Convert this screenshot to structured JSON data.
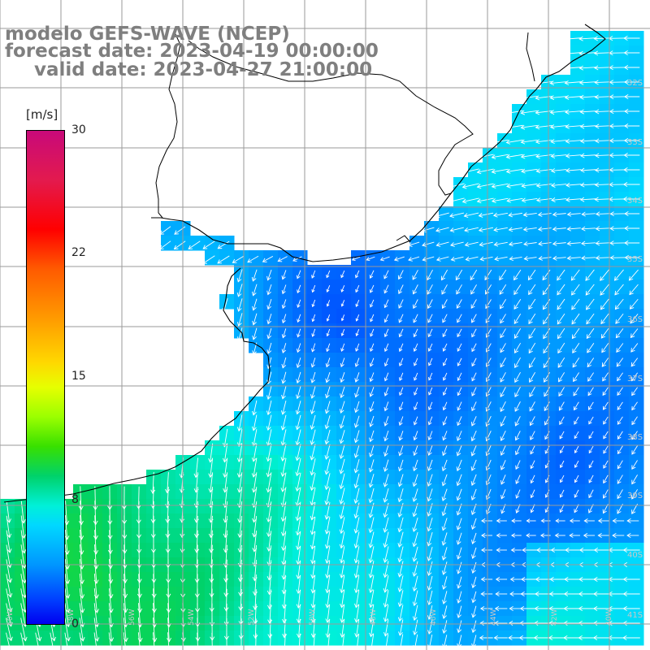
{
  "title": {
    "line1": "modelo GEFS-WAVE (NCEP)",
    "line2": "forecast date: 2023-04-19 00:00:00",
    "line3": "valid date: 2023-04-27 21:00:00"
  },
  "colorbar": {
    "unit": "[m/s]",
    "ticks": [
      "30",
      "22",
      "15",
      "8",
      "0"
    ],
    "tick_values": [
      30,
      22,
      15,
      8,
      0
    ]
  },
  "lat_labels": [
    "32S",
    "33S",
    "34S",
    "35S",
    "36S",
    "37S",
    "38S",
    "39S",
    "40S",
    "41S"
  ],
  "lon_labels": [
    "60W",
    "58W",
    "56W",
    "54W",
    "52W",
    "50W",
    "48W",
    "46W",
    "44W",
    "42W",
    "40W"
  ],
  "colors": {
    "land": "#ffffff",
    "grid": "#9a9a9a",
    "coast": "#000000",
    "arrow": "#ffffff",
    "title": "#7f7f7f"
  },
  "field": {
    "variable": "wind speed",
    "units": "m/s",
    "range": [
      0,
      30
    ]
  }
}
